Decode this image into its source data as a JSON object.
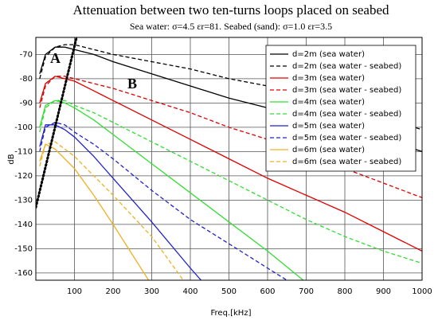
{
  "chart_data": {
    "type": "line",
    "title": "Attenuation between two ten-turns loops placed on seabed",
    "subtitle": "Sea water: σ=4.5 εr=81. Seabed (sand): σ=1.0 εr=3.5",
    "xlabel": "Freq.[kHz]",
    "ylabel": "dB",
    "annotations": [
      "A",
      "B"
    ],
    "x": [
      10,
      25,
      50,
      75,
      100,
      150,
      200,
      300,
      400,
      500,
      600,
      700,
      800,
      900,
      1000
    ],
    "series": [
      {
        "name": "d=2m (sea water)",
        "color": "#000000",
        "dash": false,
        "values": [
          -78,
          -70,
          -67,
          -67,
          -68,
          -70,
          -73,
          -78,
          -83,
          -88,
          -92,
          -96,
          -101,
          -105,
          -110
        ]
      },
      {
        "name": "d=2m (sea water - seabed)",
        "color": "#000000",
        "dash": true,
        "values": [
          -80,
          -71,
          -67,
          -66,
          -66,
          -68,
          -70,
          -73,
          -76,
          -80,
          -83,
          -87,
          -92,
          -96,
          -101
        ]
      },
      {
        "name": "d=3m (sea water)",
        "color": "#e00000",
        "dash": false,
        "values": [
          -90,
          -82,
          -79,
          -80,
          -81,
          -85,
          -89,
          -97,
          -105,
          -113,
          -121,
          -128,
          -135,
          -143,
          -151
        ]
      },
      {
        "name": "d=3m (sea water - seabed)",
        "color": "#e00000",
        "dash": true,
        "values": [
          -92,
          -83,
          -79,
          -79,
          -80,
          -82,
          -84,
          -89,
          -94,
          -100,
          -105,
          -111,
          -117,
          -123,
          -129
        ]
      },
      {
        "name": "d=4m (sea water)",
        "color": "#33dd33",
        "dash": false,
        "values": [
          -100,
          -91,
          -89,
          -90,
          -92,
          -97,
          -103,
          -115,
          -127,
          -139,
          -151,
          -164,
          null,
          null,
          null
        ]
      },
      {
        "name": "d=4m (sea water - seabed)",
        "color": "#33dd33",
        "dash": true,
        "values": [
          -102,
          -92,
          -89,
          -89,
          -91,
          -94,
          -98,
          -106,
          -114,
          -122,
          -130,
          -138,
          -145,
          -151,
          -156
        ]
      },
      {
        "name": "d=5m (sea water)",
        "color": "#2222cc",
        "dash": false,
        "values": [
          -108,
          -99,
          -99,
          -101,
          -104,
          -112,
          -121,
          -139,
          -158,
          -176,
          null,
          null,
          null,
          null,
          null
        ]
      },
      {
        "name": "d=5m (sea water - seabed)",
        "color": "#2222cc",
        "dash": true,
        "values": [
          -110,
          -100,
          -98,
          -99,
          -102,
          -107,
          -113,
          -126,
          -138,
          -148,
          -158,
          -168,
          null,
          null,
          null
        ]
      },
      {
        "name": "d=6m (sea water)",
        "color": "#f0b020",
        "dash": false,
        "values": [
          -114,
          -107,
          -109,
          -113,
          -117,
          -128,
          -140,
          -165,
          null,
          null,
          null,
          null,
          null,
          null,
          null
        ]
      },
      {
        "name": "d=6m (sea water - seabed)",
        "color": "#f0b020",
        "dash": true,
        "values": [
          -116,
          -107,
          -106,
          -109,
          -112,
          -120,
          -128,
          -145,
          -167,
          null,
          null,
          null,
          null,
          null,
          null
        ]
      }
    ],
    "boundary": {
      "x": [
        0,
        110
      ],
      "values": [
        -133,
        -60
      ],
      "color": "#000000"
    },
    "xlim": [
      0,
      1000
    ],
    "xticks": [
      100,
      200,
      300,
      400,
      500,
      600,
      700,
      800,
      900,
      1000
    ],
    "ylim": [
      -163,
      -63
    ],
    "yticks": [
      -160,
      -150,
      -140,
      -130,
      -120,
      -110,
      -100,
      -90,
      -80,
      -70
    ],
    "grid": true,
    "legend": "upper right"
  }
}
